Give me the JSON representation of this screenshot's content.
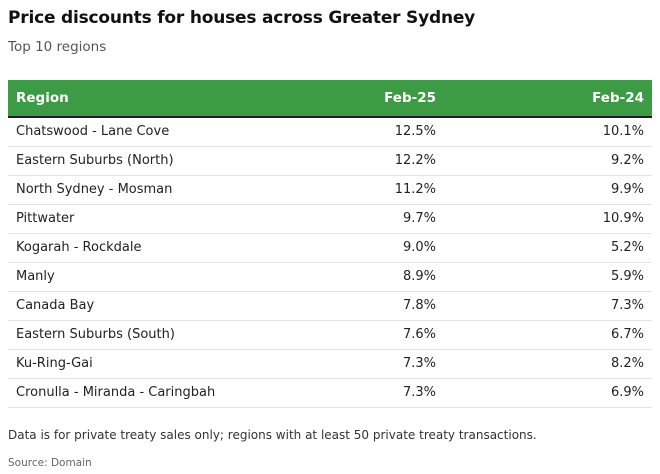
{
  "chart_data": {
    "type": "table",
    "title": "Price discounts for houses across Greater Sydney",
    "subtitle": "Top 10 regions",
    "columns": [
      "Region",
      "Feb-25",
      "Feb-24"
    ],
    "rows": [
      [
        "Chatswood - Lane Cove",
        "12.5%",
        "10.1%"
      ],
      [
        "Eastern Suburbs (North)",
        "12.2%",
        "9.2%"
      ],
      [
        "North Sydney - Mosman",
        "11.2%",
        "9.9%"
      ],
      [
        "Pittwater",
        "9.7%",
        "10.9%"
      ],
      [
        "Kogarah - Rockdale",
        "9.0%",
        "5.2%"
      ],
      [
        "Manly",
        "8.9%",
        "5.9%"
      ],
      [
        "Canada Bay",
        "7.8%",
        "7.3%"
      ],
      [
        "Eastern Suburbs (South)",
        "7.6%",
        "6.7%"
      ],
      [
        "Ku-Ring-Gai",
        "7.3%",
        "8.2%"
      ],
      [
        "Cronulla - Miranda - Caringbah",
        "7.3%",
        "6.9%"
      ]
    ],
    "note": "Data is for private treaty sales only; regions with at least 50 private treaty transactions.",
    "source": "Source: Domain",
    "header_color": "#3d9a45",
    "header_text_color": "#ffffff"
  }
}
